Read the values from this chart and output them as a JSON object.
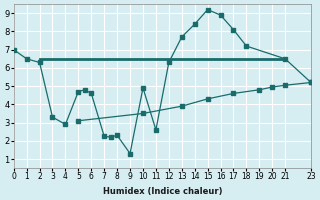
{
  "xlabel": "Humidex (Indice chaleur)",
  "bg_color": "#d6eef2",
  "grid_color": "#ffffff",
  "line_color": "#1a6b6b",
  "xlim": [
    0,
    23
  ],
  "ylim": [
    0.5,
    9.5
  ],
  "xticks": [
    0,
    1,
    2,
    3,
    4,
    5,
    6,
    7,
    8,
    9,
    10,
    11,
    12,
    13,
    14,
    15,
    16,
    17,
    18,
    19,
    20,
    21,
    23
  ],
  "yticks": [
    1,
    2,
    3,
    4,
    5,
    6,
    7,
    8,
    9
  ],
  "line1_x": [
    0,
    1,
    2,
    3,
    4,
    5,
    5.5,
    6,
    7,
    7.5,
    8,
    9,
    10,
    11,
    12,
    13,
    14,
    15,
    16,
    17,
    18,
    21,
    23
  ],
  "line1_y": [
    7.0,
    6.5,
    6.3,
    3.3,
    2.9,
    4.7,
    4.8,
    4.6,
    2.25,
    2.2,
    2.3,
    1.3,
    4.9,
    2.6,
    6.3,
    7.7,
    8.4,
    9.2,
    8.9,
    8.1,
    7.2,
    6.5,
    5.2
  ],
  "line2_x": [
    2,
    21
  ],
  "line2_y": [
    6.5,
    6.5
  ],
  "line3_x": [
    5,
    10,
    13,
    15,
    17,
    19,
    20,
    21,
    23
  ],
  "line3_y": [
    3.1,
    3.5,
    3.9,
    4.3,
    4.6,
    4.8,
    4.95,
    5.05,
    5.2
  ]
}
